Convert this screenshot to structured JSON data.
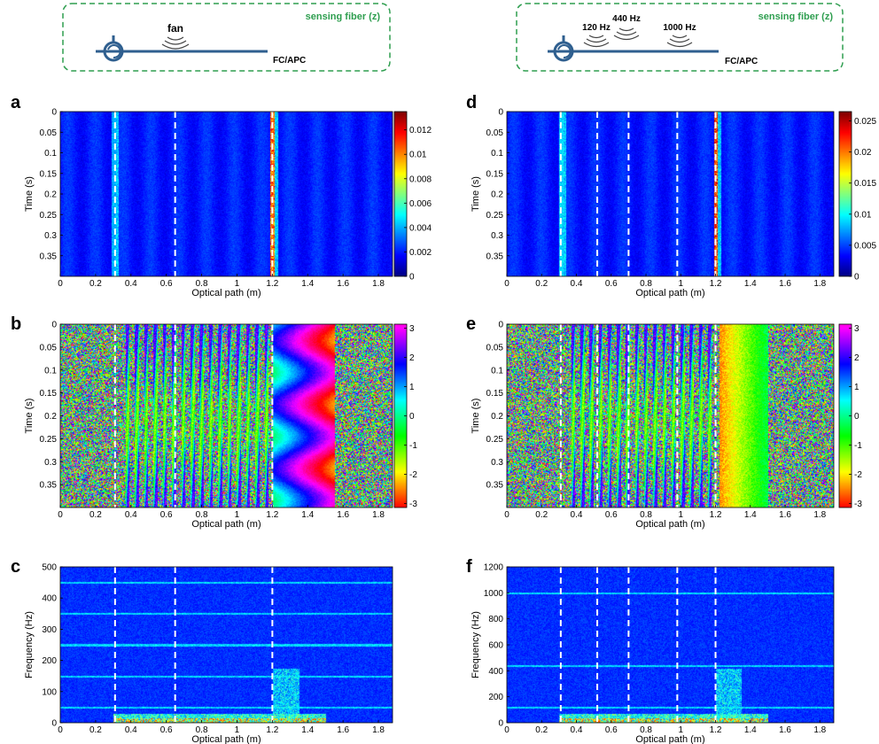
{
  "schematics": [
    {
      "fiber_label": "sensing fiber (z)",
      "connector": "FC/APC",
      "sources": [
        "fan"
      ]
    },
    {
      "fiber_label": "sensing fiber (z)",
      "connector": "FC/APC",
      "sources": [
        "120 Hz",
        "440 Hz",
        "1000 Hz"
      ]
    }
  ],
  "colors": {
    "schematic_border": "#2e9e4f",
    "fiber": "#2f5f8f",
    "fiber_label": "#2e9e4f",
    "marker_lines": "#ffffff"
  },
  "colormaps": {
    "amplitude": "jet",
    "phase": "hsv"
  },
  "chart_data": [
    {
      "panel": "a",
      "type": "heatmap",
      "xlabel": "Optical path (m)",
      "ylabel": "Time (s)",
      "xticks": [
        "0",
        "0.2",
        "0.4",
        "0.6",
        "0.8",
        "1",
        "1.2",
        "1.4",
        "1.6",
        "1.8"
      ],
      "yticks": [
        "0",
        "0.05",
        "0.1",
        "0.15",
        "0.2",
        "0.25",
        "0.3",
        "0.35"
      ],
      "xlim": [
        0,
        1.88
      ],
      "ylim": [
        0,
        0.4
      ],
      "y_reversed": true,
      "colorbar": {
        "ticks": [
          "0",
          "0.002",
          "0.004",
          "0.006",
          "0.008",
          "0.01",
          "0.012"
        ],
        "range": [
          0,
          0.0135
        ]
      },
      "dashed_lines_x": [
        0.31,
        0.65,
        1.2
      ],
      "bright_columns": [
        {
          "x": 0.3,
          "intensity": 0.35
        },
        {
          "x": 1.2,
          "intensity": 0.9
        }
      ]
    },
    {
      "panel": "b",
      "type": "heatmap",
      "xlabel": "Optical path (m)",
      "ylabel": "Time (s)",
      "xticks": [
        "0",
        "0.2",
        "0.4",
        "0.6",
        "0.8",
        "1",
        "1.2",
        "1.4",
        "1.6",
        "1.8"
      ],
      "yticks": [
        "0",
        "0.05",
        "0.1",
        "0.15",
        "0.2",
        "0.25",
        "0.3",
        "0.35"
      ],
      "xlim": [
        0,
        1.88
      ],
      "ylim": [
        0,
        0.4
      ],
      "y_reversed": true,
      "colorbar": {
        "ticks": [
          "3",
          "2",
          "1",
          "0",
          "-1",
          "-2",
          "-3"
        ],
        "range": [
          -3.14,
          3.14
        ]
      },
      "dashed_lines_x": [
        0.31,
        0.65,
        1.2
      ]
    },
    {
      "panel": "c",
      "type": "heatmap",
      "xlabel": "Optical path (m)",
      "ylabel": "Frequency (Hz)",
      "xticks": [
        "0",
        "0.2",
        "0.4",
        "0.6",
        "0.8",
        "1",
        "1.2",
        "1.4",
        "1.6",
        "1.8"
      ],
      "yticks": [
        "0",
        "100",
        "200",
        "300",
        "400",
        "500"
      ],
      "xlim": [
        0,
        1.88
      ],
      "ylim": [
        0,
        500
      ],
      "dashed_lines_x": [
        0.31,
        0.65,
        1.2
      ],
      "harmonic_rows_hz": [
        50,
        150,
        250,
        350,
        450
      ]
    },
    {
      "panel": "d",
      "type": "heatmap",
      "xlabel": "Optical path (m)",
      "ylabel": "Time (s)",
      "xticks": [
        "0",
        "0.2",
        "0.4",
        "0.6",
        "0.8",
        "1",
        "1.2",
        "1.4",
        "1.6",
        "1.8"
      ],
      "yticks": [
        "0",
        "0.05",
        "0.1",
        "0.15",
        "0.2",
        "0.25",
        "0.3",
        "0.35"
      ],
      "xlim": [
        0,
        1.88
      ],
      "ylim": [
        0,
        0.4
      ],
      "y_reversed": true,
      "colorbar": {
        "ticks": [
          "0",
          "0.005",
          "0.01",
          "0.015",
          "0.02",
          "0.025"
        ],
        "range": [
          0,
          0.0265
        ]
      },
      "dashed_lines_x": [
        0.31,
        0.52,
        0.7,
        0.98,
        1.2
      ],
      "bright_columns": [
        {
          "x": 0.31,
          "intensity": 0.4
        },
        {
          "x": 1.2,
          "intensity": 0.95
        }
      ]
    },
    {
      "panel": "e",
      "type": "heatmap",
      "xlabel": "Optical path (m)",
      "ylabel": "Time (s)",
      "xticks": [
        "0",
        "0.2",
        "0.4",
        "0.6",
        "0.8",
        "1",
        "1.2",
        "1.4",
        "1.6",
        "1.8"
      ],
      "yticks": [
        "0",
        "0.05",
        "0.1",
        "0.15",
        "0.2",
        "0.25",
        "0.3",
        "0.35"
      ],
      "xlim": [
        0,
        1.88
      ],
      "ylim": [
        0,
        0.4
      ],
      "y_reversed": true,
      "colorbar": {
        "ticks": [
          "3",
          "2",
          "1",
          "0",
          "-1",
          "-2",
          "-3"
        ],
        "range": [
          -3.14,
          3.14
        ]
      },
      "dashed_lines_x": [
        0.31,
        0.52,
        0.7,
        0.98,
        1.2
      ]
    },
    {
      "panel": "f",
      "type": "heatmap",
      "xlabel": "Optical path (m)",
      "ylabel": "Frequency (Hz)",
      "xticks": [
        "0",
        "0.2",
        "0.4",
        "0.6",
        "0.8",
        "1",
        "1.2",
        "1.4",
        "1.6",
        "1.8"
      ],
      "yticks": [
        "0",
        "200",
        "400",
        "600",
        "800",
        "1000",
        "1200"
      ],
      "xlim": [
        0,
        1.88
      ],
      "ylim": [
        0,
        1200
      ],
      "dashed_lines_x": [
        0.31,
        0.52,
        0.7,
        0.98,
        1.2
      ],
      "tone_rows_hz": [
        120,
        440,
        1000
      ]
    }
  ]
}
